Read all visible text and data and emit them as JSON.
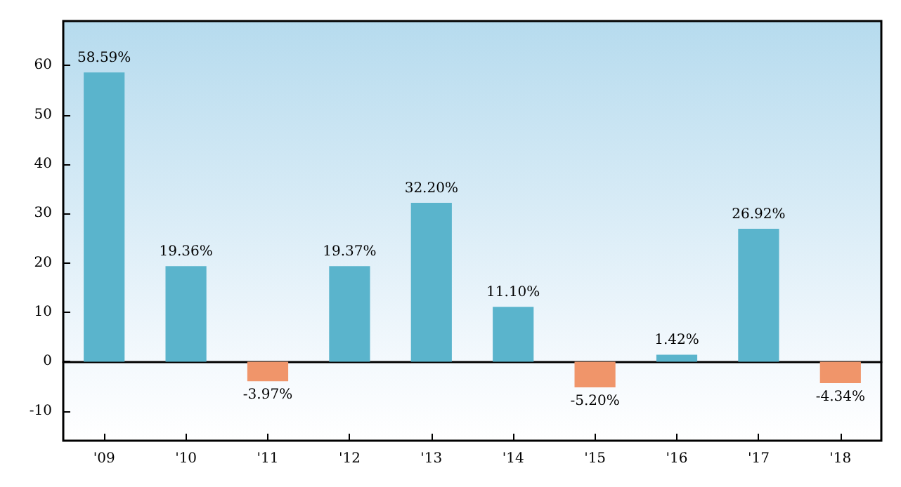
{
  "chart_data": {
    "type": "bar",
    "categories": [
      "'09",
      "'10",
      "'11",
      "'12",
      "'13",
      "'14",
      "'15",
      "'16",
      "'17",
      "'18"
    ],
    "values": [
      58.59,
      19.36,
      -3.97,
      19.37,
      32.2,
      11.1,
      -5.2,
      1.42,
      26.92,
      -4.34
    ],
    "colors": [
      "#5ab4cc",
      "#5ab4cc",
      "#f0956a",
      "#5ab4cc",
      "#5ab4cc",
      "#5ab4cc",
      "#f0956a",
      "#5ab4cc",
      "#5ab4cc",
      "#f0956a"
    ],
    "value_labels": [
      "58.59%",
      "19.36%",
      "-3.97%",
      "19.37%",
      "32.20%",
      "11.10%",
      "-5.20%",
      "1.42%",
      "26.92%",
      "-4.34%"
    ],
    "ylim": [
      -16,
      69
    ],
    "yticks": [
      -10,
      0,
      10,
      20,
      30,
      40,
      50,
      60
    ]
  }
}
